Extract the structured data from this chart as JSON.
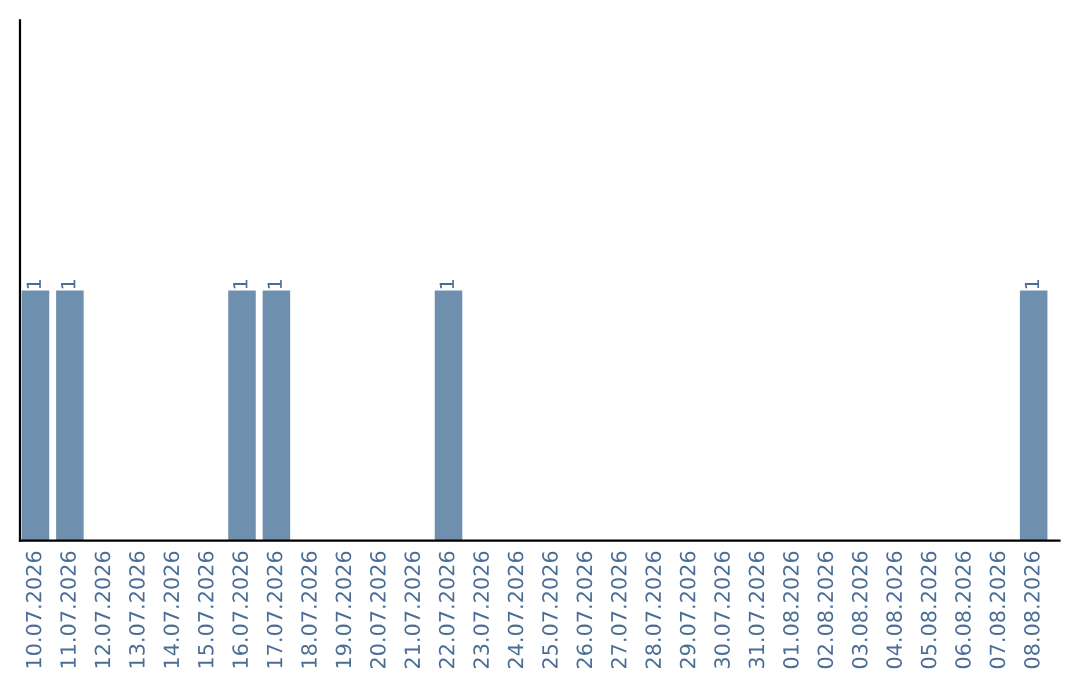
{
  "chart_data": {
    "type": "bar",
    "categories": [
      "10.07.2026",
      "11.07.2026",
      "12.07.2026",
      "13.07.2026",
      "14.07.2026",
      "15.07.2026",
      "16.07.2026",
      "17.07.2026",
      "18.07.2026",
      "19.07.2026",
      "20.07.2026",
      "21.07.2026",
      "22.07.2026",
      "23.07.2026",
      "24.07.2026",
      "25.07.2026",
      "26.07.2026",
      "27.07.2026",
      "28.07.2026",
      "29.07.2026",
      "30.07.2026",
      "31.07.2026",
      "01.08.2026",
      "02.08.2026",
      "03.08.2026",
      "04.08.2026",
      "05.08.2026",
      "06.08.2026",
      "07.08.2026",
      "08.08.2026"
    ],
    "values": [
      1,
      1,
      0,
      0,
      0,
      0,
      1,
      1,
      0,
      0,
      0,
      0,
      1,
      0,
      0,
      0,
      0,
      0,
      0,
      0,
      0,
      0,
      0,
      0,
      0,
      0,
      0,
      0,
      0,
      1
    ],
    "value_labels": [
      "1",
      "1",
      null,
      null,
      null,
      null,
      "1",
      "1",
      null,
      null,
      null,
      null,
      "1",
      null,
      null,
      null,
      null,
      null,
      null,
      null,
      null,
      null,
      null,
      null,
      null,
      null,
      null,
      null,
      null,
      "1"
    ],
    "color": "#6e8fad",
    "ylim": [
      0,
      2.08
    ],
    "tick_labels": "x",
    "grid": false,
    "legend": false
  }
}
